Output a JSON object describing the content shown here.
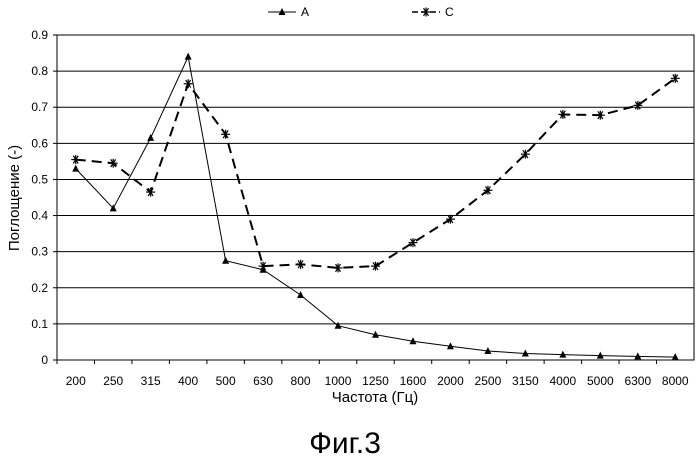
{
  "chart_data": {
    "type": "line",
    "categories": [
      "200",
      "250",
      "315",
      "400",
      "500",
      "630",
      "800",
      "1000",
      "1250",
      "1600",
      "2000",
      "2500",
      "3150",
      "4000",
      "5000",
      "6300",
      "8000"
    ],
    "series": [
      {
        "name": "A",
        "marker": "triangle",
        "line_style": "solid",
        "values": [
          0.53,
          0.42,
          0.615,
          0.84,
          0.275,
          0.25,
          0.18,
          0.095,
          0.07,
          0.052,
          0.038,
          0.025,
          0.018,
          0.015,
          0.012,
          0.01,
          0.008
        ]
      },
      {
        "name": "C",
        "marker": "asterisk",
        "line_style": "dashed",
        "values": [
          0.555,
          0.545,
          0.465,
          0.765,
          0.625,
          0.26,
          0.265,
          0.255,
          0.26,
          0.325,
          0.39,
          0.47,
          0.57,
          0.68,
          0.678,
          0.705,
          0.78
        ]
      }
    ],
    "xlabel": "Частота (Гц)",
    "ylabel": "Поглощение (-)",
    "ylim": [
      0,
      0.9
    ],
    "yticks": [
      "0",
      "0.1",
      "0.2",
      "0.3",
      "0.4",
      "0.5",
      "0.6",
      "0.7",
      "0.8",
      "0.9"
    ],
    "grid": "horizontal",
    "legend": "top-center",
    "caption": "Фиг.3"
  }
}
